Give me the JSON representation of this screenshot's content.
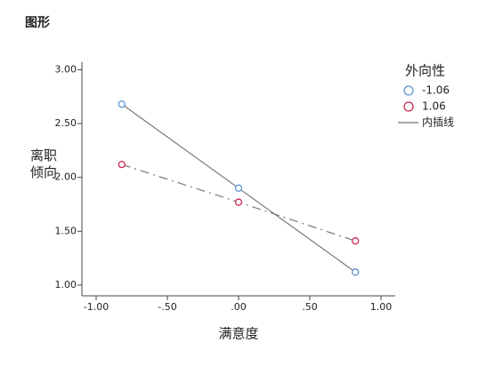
{
  "page_title": "图形",
  "chart_data": {
    "type": "line",
    "x_label": "满意度",
    "y_label": "离职倾向",
    "legend_title": "外向性",
    "legend_position": "right",
    "interp_label": "内插线",
    "interp_color": "#777777",
    "xlim": [
      -1.1,
      1.1
    ],
    "ylim": [
      0.9,
      3.07
    ],
    "xticks": [
      {
        "value": -1,
        "label": "-1.00"
      },
      {
        "value": -0.5,
        "label": "-.50"
      },
      {
        "value": 0,
        "label": ".00"
      },
      {
        "value": 0.5,
        "label": ".50"
      },
      {
        "value": 1,
        "label": "1.00"
      }
    ],
    "yticks": [
      {
        "value": 1,
        "label": "1.00"
      },
      {
        "value": 1.5,
        "label": "1.50"
      },
      {
        "value": 2,
        "label": "2.00"
      },
      {
        "value": 2.5,
        "label": "2.50"
      },
      {
        "value": 3,
        "label": "3.00"
      }
    ],
    "x": [
      -0.82,
      0,
      0.82
    ],
    "series": [
      {
        "name": "-1.06",
        "color": "#5b93cf",
        "line_style": "solid",
        "values": [
          2.68,
          1.9,
          1.12
        ]
      },
      {
        "name": "1.06",
        "color": "#c8294f",
        "line_style": "dash-dot",
        "values": [
          2.12,
          1.77,
          1.41
        ]
      }
    ]
  }
}
